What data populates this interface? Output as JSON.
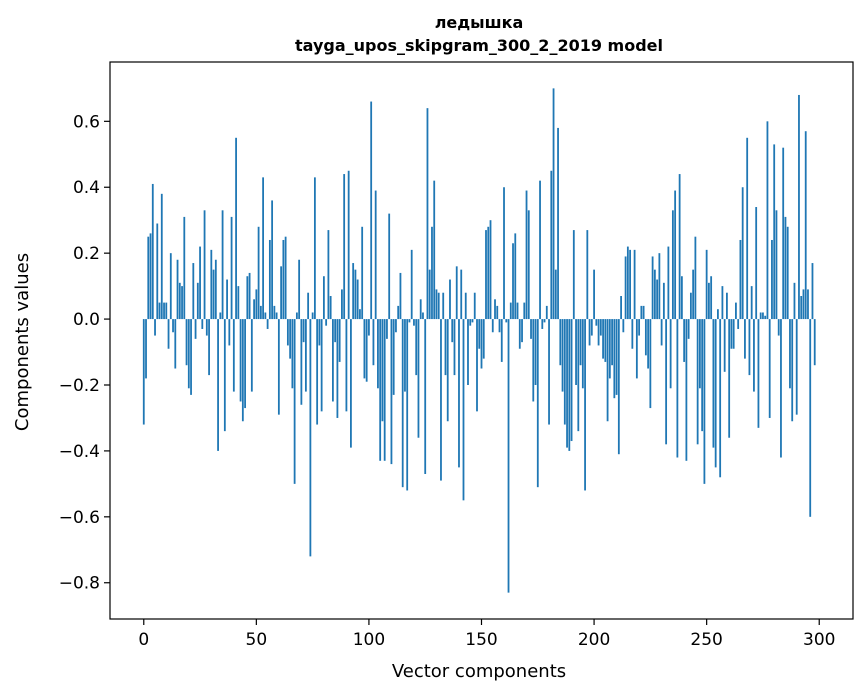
{
  "chart_data": {
    "type": "bar",
    "title_line1": "ледышка",
    "title_line2": "tayga_upos_skipgram_300_2_2019 model",
    "xlabel": "Vector components",
    "ylabel": "Components values",
    "xlim": [
      -15,
      315
    ],
    "ylim": [
      -0.91,
      0.78
    ],
    "xticks": [
      0,
      50,
      100,
      150,
      200,
      250,
      300
    ],
    "xtick_labels": [
      "0",
      "50",
      "100",
      "150",
      "200",
      "250",
      "300"
    ],
    "yticks": [
      -0.8,
      -0.6,
      -0.4,
      -0.2,
      0.0,
      0.2,
      0.4,
      0.6
    ],
    "ytick_labels": [
      "−0.8",
      "−0.6",
      "−0.4",
      "−0.2",
      "0.0",
      "0.2",
      "0.4",
      "0.6"
    ],
    "bar_color": "#1f77b4",
    "values": [
      -0.32,
      -0.18,
      0.25,
      0.26,
      0.41,
      -0.05,
      0.29,
      0.05,
      0.38,
      0.05,
      0.05,
      -0.09,
      0.2,
      -0.04,
      -0.15,
      0.18,
      0.11,
      0.1,
      0.31,
      -0.14,
      -0.21,
      -0.23,
      0.17,
      -0.06,
      0.11,
      0.22,
      -0.03,
      0.33,
      -0.05,
      -0.17,
      0.21,
      0.15,
      0.18,
      -0.4,
      0.02,
      0.33,
      -0.34,
      0.12,
      -0.08,
      0.31,
      -0.22,
      0.55,
      0.1,
      -0.25,
      -0.31,
      -0.27,
      0.13,
      0.14,
      -0.22,
      0.06,
      0.09,
      0.28,
      0.04,
      0.43,
      0.02,
      -0.03,
      0.24,
      0.36,
      0.04,
      0.02,
      -0.29,
      0.16,
      0.24,
      0.25,
      -0.08,
      -0.12,
      -0.21,
      -0.5,
      0.02,
      0.18,
      -0.26,
      -0.07,
      -0.22,
      0.08,
      -0.72,
      0.02,
      0.43,
      -0.32,
      -0.08,
      -0.28,
      0.13,
      -0.02,
      0.27,
      0.07,
      -0.25,
      -0.07,
      -0.3,
      -0.13,
      0.09,
      0.44,
      -0.28,
      0.45,
      -0.39,
      0.17,
      0.15,
      0.12,
      0.03,
      0.28,
      -0.18,
      -0.19,
      -0.05,
      0.66,
      -0.14,
      0.39,
      -0.21,
      -0.43,
      -0.31,
      -0.43,
      -0.06,
      0.32,
      -0.44,
      -0.23,
      -0.04,
      0.04,
      0.14,
      -0.51,
      -0.22,
      -0.52,
      -0.01,
      0.21,
      -0.02,
      -0.17,
      -0.36,
      0.06,
      0.02,
      -0.47,
      0.64,
      0.15,
      0.28,
      0.42,
      0.09,
      0.08,
      -0.49,
      0.08,
      -0.17,
      -0.31,
      0.12,
      -0.07,
      -0.17,
      0.16,
      -0.45,
      0.15,
      -0.55,
      0.08,
      -0.2,
      -0.02,
      -0.01,
      0.08,
      -0.28,
      -0.09,
      -0.15,
      -0.12,
      0.27,
      0.28,
      0.3,
      -0.04,
      0.06,
      0.04,
      -0.04,
      -0.13,
      0.4,
      -0.01,
      -0.83,
      0.05,
      0.23,
      0.26,
      0.05,
      -0.09,
      -0.07,
      0.05,
      0.39,
      0.33,
      -0.06,
      -0.25,
      -0.2,
      -0.51,
      0.42,
      -0.03,
      -0.01,
      0.04,
      -0.32,
      0.45,
      0.7,
      0.15,
      0.58,
      -0.14,
      -0.22,
      -0.32,
      -0.39,
      -0.4,
      -0.37,
      0.27,
      -0.2,
      -0.34,
      -0.14,
      -0.21,
      -0.52,
      0.27,
      -0.08,
      -0.05,
      0.15,
      -0.02,
      -0.08,
      -0.05,
      -0.12,
      -0.13,
      -0.31,
      -0.18,
      -0.14,
      -0.24,
      -0.23,
      -0.41,
      0.07,
      -0.04,
      0.19,
      0.22,
      0.21,
      -0.09,
      0.21,
      -0.18,
      -0.05,
      0.04,
      0.04,
      -0.11,
      -0.15,
      -0.27,
      0.19,
      0.15,
      0.12,
      0.2,
      -0.08,
      0.11,
      -0.38,
      0.22,
      -0.21,
      0.33,
      0.39,
      -0.42,
      0.44,
      0.13,
      -0.13,
      -0.43,
      -0.06,
      0.08,
      0.15,
      0.25,
      -0.38,
      -0.21,
      -0.34,
      -0.5,
      0.21,
      0.11,
      0.13,
      -0.39,
      -0.45,
      0.03,
      -0.48,
      0.1,
      -0.16,
      0.08,
      -0.36,
      -0.09,
      -0.09,
      0.05,
      -0.03,
      0.24,
      0.4,
      -0.12,
      0.55,
      -0.17,
      0.1,
      -0.22,
      0.34,
      -0.33,
      0.02,
      0.02,
      0.01,
      0.6,
      -0.3,
      0.24,
      0.53,
      0.33,
      -0.05,
      -0.42,
      0.52,
      0.31,
      0.28,
      -0.21,
      -0.31,
      0.11,
      -0.29,
      0.68,
      0.07,
      0.09,
      0.57,
      0.09,
      -0.6,
      0.17,
      -0.14
    ]
  }
}
